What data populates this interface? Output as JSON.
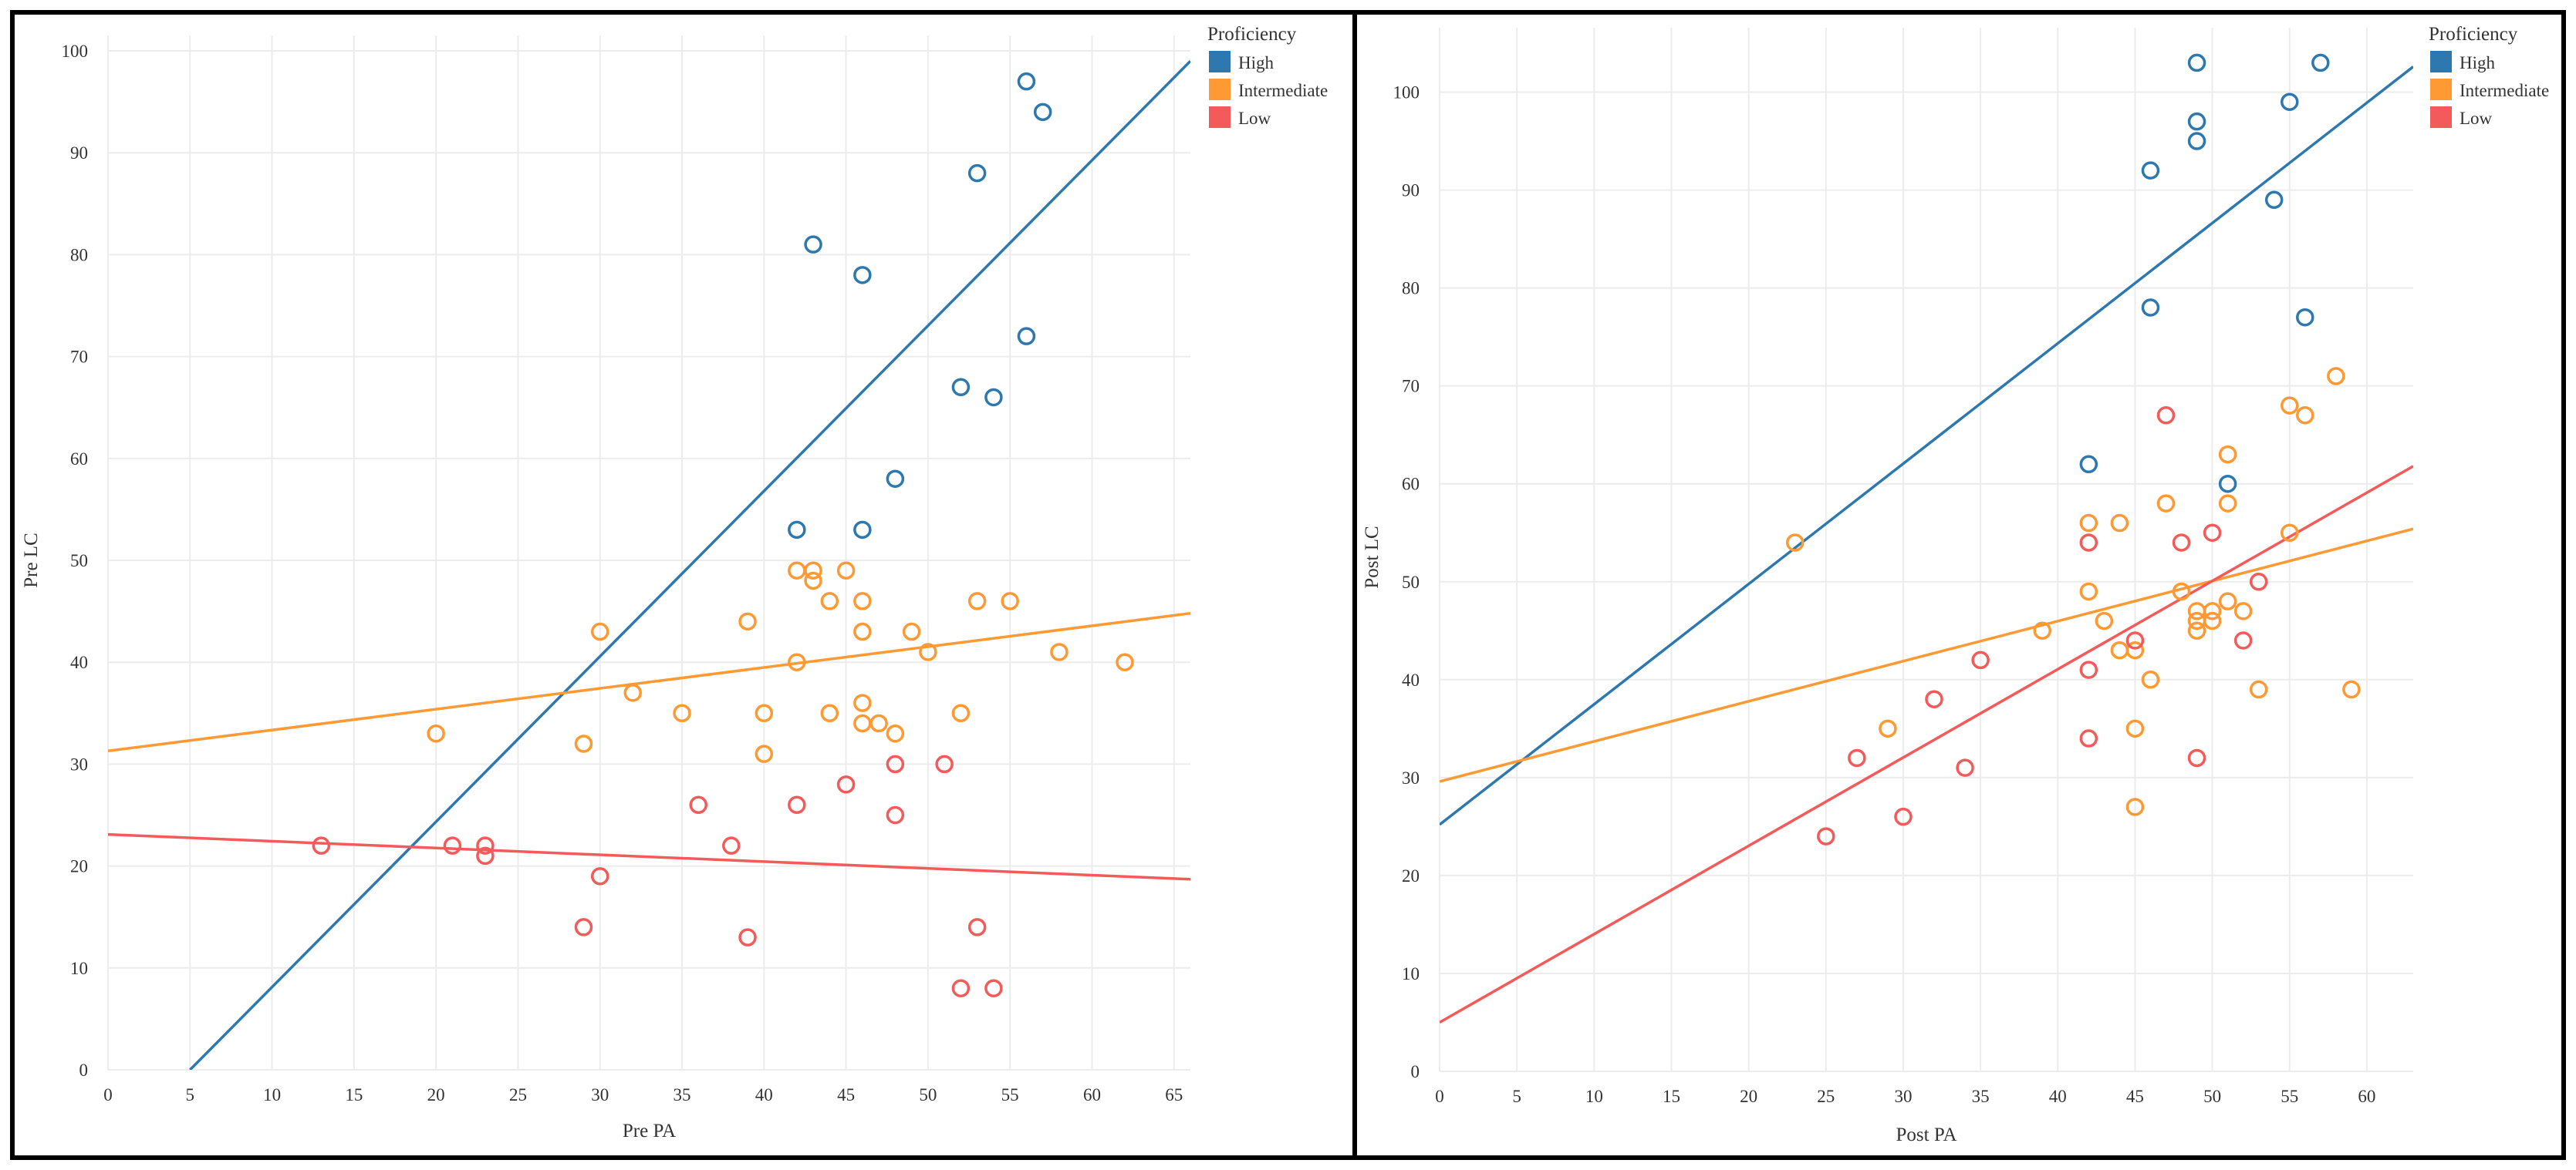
{
  "chart_data": [
    {
      "type": "scatter",
      "title": "",
      "xlabel": "Pre PA",
      "ylabel": "Pre LC",
      "xlim": [
        0,
        66
      ],
      "ylim": [
        0,
        100
      ],
      "xticks": [
        0,
        5,
        10,
        15,
        20,
        25,
        30,
        35,
        40,
        45,
        50,
        55,
        60,
        65
      ],
      "yticks": [
        0,
        10,
        20,
        30,
        40,
        50,
        60,
        70,
        80,
        90,
        100
      ],
      "grid": true,
      "legend": {
        "title": "Proficiency",
        "position": "top-right",
        "entries": [
          "High",
          "Intermediate",
          "Low"
        ]
      },
      "series": [
        {
          "name": "High",
          "color": "#2e78b0",
          "points": [
            [
              56,
              97
            ],
            [
              57,
              94
            ],
            [
              53,
              88
            ],
            [
              43,
              81
            ],
            [
              46,
              78
            ],
            [
              56,
              72
            ],
            [
              52,
              67
            ],
            [
              54,
              66
            ],
            [
              48,
              58
            ],
            [
              42,
              53
            ],
            [
              46,
              53
            ]
          ],
          "fit": [
            [
              5,
              0
            ],
            [
              66,
              99
            ]
          ]
        },
        {
          "name": "Intermediate",
          "color": "#ff9933",
          "points": [
            [
              42,
              49
            ],
            [
              43,
              49
            ],
            [
              45,
              49
            ],
            [
              43,
              48
            ],
            [
              44,
              46
            ],
            [
              46,
              46
            ],
            [
              53,
              46
            ],
            [
              55,
              46
            ],
            [
              39,
              44
            ],
            [
              30,
              43
            ],
            [
              46,
              43
            ],
            [
              49,
              43
            ],
            [
              50,
              41
            ],
            [
              58,
              41
            ],
            [
              42,
              40
            ],
            [
              62,
              40
            ],
            [
              32,
              37
            ],
            [
              46,
              36
            ],
            [
              35,
              35
            ],
            [
              40,
              35
            ],
            [
              44,
              35
            ],
            [
              52,
              35
            ],
            [
              46,
              34
            ],
            [
              47,
              34
            ],
            [
              48,
              33
            ],
            [
              20,
              33
            ],
            [
              29,
              32
            ],
            [
              40,
              31
            ]
          ],
          "fit": [
            [
              0,
              31.3
            ],
            [
              66,
              44.8
            ]
          ]
        },
        {
          "name": "Low",
          "color": "#f55a5a",
          "points": [
            [
              48,
              30
            ],
            [
              51,
              30
            ],
            [
              45,
              28
            ],
            [
              36,
              26
            ],
            [
              42,
              26
            ],
            [
              48,
              25
            ],
            [
              13,
              22
            ],
            [
              21,
              22
            ],
            [
              23,
              22
            ],
            [
              38,
              22
            ],
            [
              23,
              21
            ],
            [
              30,
              19
            ],
            [
              29,
              14
            ],
            [
              53,
              14
            ],
            [
              39,
              13
            ],
            [
              52,
              8
            ],
            [
              54,
              8
            ]
          ],
          "fit": [
            [
              0,
              23.1
            ],
            [
              66,
              18.7
            ]
          ]
        }
      ]
    },
    {
      "type": "scatter",
      "title": "",
      "xlabel": "Post PA",
      "ylabel": "Post LC",
      "xlim": [
        0,
        63
      ],
      "ylim": [
        0,
        105
      ],
      "xticks": [
        0,
        5,
        10,
        15,
        20,
        25,
        30,
        35,
        40,
        45,
        50,
        55,
        60
      ],
      "yticks": [
        0,
        10,
        20,
        30,
        40,
        50,
        60,
        70,
        80,
        90,
        100
      ],
      "grid": true,
      "legend": {
        "title": "Proficiency",
        "position": "top-right",
        "entries": [
          "High",
          "Intermediate",
          "Low"
        ]
      },
      "series": [
        {
          "name": "High",
          "color": "#2e78b0",
          "points": [
            [
              49,
              103
            ],
            [
              57,
              103
            ],
            [
              55,
              99
            ],
            [
              49,
              97
            ],
            [
              49,
              95
            ],
            [
              46,
              92
            ],
            [
              54,
              89
            ],
            [
              46,
              78
            ],
            [
              56,
              77
            ],
            [
              42,
              62
            ],
            [
              51,
              60
            ]
          ],
          "fit": [
            [
              0,
              25.2
            ],
            [
              63,
              102.6
            ]
          ]
        },
        {
          "name": "Intermediate",
          "color": "#ff9933",
          "points": [
            [
              23,
              54
            ],
            [
              58,
              71
            ],
            [
              55,
              68
            ],
            [
              56,
              67
            ],
            [
              51,
              63
            ],
            [
              47,
              58
            ],
            [
              51,
              58
            ],
            [
              42,
              56
            ],
            [
              44,
              56
            ],
            [
              55,
              55
            ],
            [
              42,
              49
            ],
            [
              48,
              49
            ],
            [
              51,
              48
            ],
            [
              50,
              47
            ],
            [
              52,
              47
            ],
            [
              49,
              47
            ],
            [
              43,
              46
            ],
            [
              49,
              46
            ],
            [
              50,
              46
            ],
            [
              49,
              45
            ],
            [
              39,
              45
            ],
            [
              44,
              43
            ],
            [
              45,
              43
            ],
            [
              46,
              40
            ],
            [
              53,
              39
            ],
            [
              59,
              39
            ],
            [
              29,
              35
            ],
            [
              45,
              35
            ],
            [
              45,
              27
            ]
          ],
          "fit": [
            [
              0,
              29.6
            ],
            [
              63,
              55.4
            ]
          ]
        },
        {
          "name": "Low",
          "color": "#f55a5a",
          "points": [
            [
              47,
              67
            ],
            [
              50,
              55
            ],
            [
              42,
              54
            ],
            [
              48,
              54
            ],
            [
              53,
              50
            ],
            [
              45,
              44
            ],
            [
              52,
              44
            ],
            [
              35,
              42
            ],
            [
              42,
              41
            ],
            [
              32,
              38
            ],
            [
              42,
              34
            ],
            [
              27,
              32
            ],
            [
              49,
              32
            ],
            [
              34,
              31
            ],
            [
              30,
              26
            ],
            [
              25,
              24
            ]
          ],
          "fit": [
            [
              0,
              5
            ],
            [
              63,
              61.8
            ]
          ]
        }
      ]
    }
  ]
}
